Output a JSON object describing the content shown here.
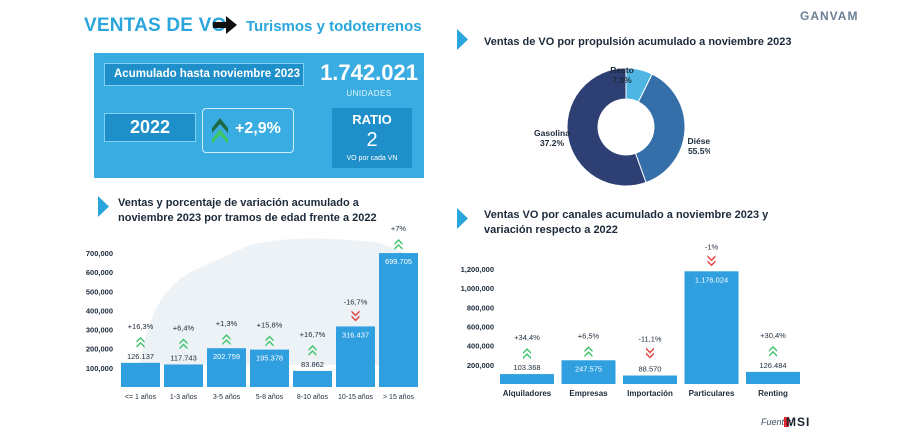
{
  "header": {
    "title": "VENTAS DE VO",
    "subtitle": "Turismos y todoterrenos",
    "brand": "GANVAM"
  },
  "kpi": {
    "period_label": "Acumulado hasta noviembre 2023",
    "total": "1.742.021",
    "units": "UNIDADES",
    "year": "2022",
    "variation": "+2,9%",
    "ratio_label": "RATIO",
    "ratio_value": "2",
    "ratio_sub": "VO por cada VN"
  },
  "sections": {
    "donut_title": "Ventas de VO por propulsión acumulado a noviembre 2023",
    "age_title": "Ventas y porcentaje de variación acumulado a noviembre 2023 por tramos de edad frente a 2022",
    "channel_title": "Ventas VO por canales acumulado a noviembre 2023 y variación respecto a 2022"
  },
  "source": {
    "label": "Fuente:",
    "name": "MSI"
  },
  "colors": {
    "accent": "#2aa6dc",
    "bar": "#2f9fe0",
    "up": "#3ec46a",
    "down": "#e0413a",
    "diesel": "#2d3f73",
    "gasolina": "#356faa",
    "resto": "#4fb6e4"
  },
  "chart_data": [
    {
      "type": "pie",
      "categories": [
        "Resto",
        "Gasolina",
        "Diésel"
      ],
      "values": [
        7.3,
        37.2,
        55.5
      ],
      "labels": [
        "7.3%",
        "37.2%",
        "55.5%"
      ]
    },
    {
      "type": "bar",
      "categories": [
        "<= 1 años",
        "1-3 años",
        "3-5 años",
        "5-8 años",
        "8-10 años",
        "10-15 años",
        "> 15 años"
      ],
      "values": [
        126137,
        117743,
        202759,
        195378,
        83862,
        316437,
        699705
      ],
      "value_labels": [
        "126.137",
        "117.743",
        "202.759",
        "195.378",
        "83.862",
        "316.437",
        "699.705"
      ],
      "variation": [
        "+16,3%",
        "+6,4%",
        "+1,3%",
        "+15,8%",
        "+16,7%",
        "-16,7%",
        "+7%"
      ],
      "direction": [
        "up",
        "up",
        "up",
        "up",
        "up",
        "down",
        "up"
      ],
      "yticks": [
        "700,000",
        "600,000",
        "500,000",
        "400,000",
        "300,000",
        "200,000",
        "100,000"
      ],
      "ylim": [
        0,
        700000
      ]
    },
    {
      "type": "bar",
      "categories": [
        "Alquiladores",
        "Empresas",
        "Importación",
        "Particulares",
        "Renting"
      ],
      "values": [
        103368,
        247575,
        88570,
        1176024,
        126484
      ],
      "value_labels": [
        "103.368",
        "247.575",
        "88.570",
        "1.176.024",
        "126.484"
      ],
      "variation": [
        "+34,4%",
        "+6,5%",
        "-11,1%",
        "-1%",
        "+30,4%"
      ],
      "direction": [
        "up",
        "up",
        "down",
        "down",
        "up"
      ],
      "yticks": [
        "1,200,000",
        "1,000,000",
        "800,000",
        "600,000",
        "400,000",
        "200,000"
      ],
      "ylim": [
        0,
        1200000
      ]
    }
  ]
}
